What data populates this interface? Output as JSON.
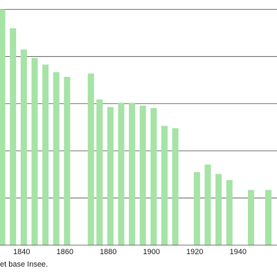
{
  "chart_data": {
    "type": "bar",
    "title": "",
    "xlabel": "",
    "ylabel": "",
    "x_tick_labels": [
      "1840",
      "1860",
      "1880",
      "1900",
      "1920",
      "1940"
    ],
    "x_ticks": [
      1840,
      1860,
      1880,
      1900,
      1920,
      1940
    ],
    "xlim": [
      1830,
      1958
    ],
    "y_gridlines": [
      1,
      2,
      3,
      4,
      5
    ],
    "ylim": [
      0,
      5.2
    ],
    "grid": true,
    "legend": "none",
    "bar_color": "#a6e3a6",
    "grid_color": "#444444",
    "categories": [
      1831,
      1836,
      1841,
      1846,
      1851,
      1856,
      1861,
      1872,
      1876,
      1881,
      1886,
      1891,
      1896,
      1901,
      1906,
      1911,
      1921,
      1926,
      1931,
      1936,
      1946,
      1954
    ],
    "values": [
      5.0,
      4.6,
      4.15,
      3.97,
      3.83,
      3.67,
      3.57,
      3.64,
      3.09,
      2.93,
      3.02,
      3.02,
      2.96,
      2.91,
      2.53,
      2.48,
      1.55,
      1.71,
      1.51,
      1.38,
      1.17,
      1.17
    ]
  },
  "source_text": "et base Insee."
}
